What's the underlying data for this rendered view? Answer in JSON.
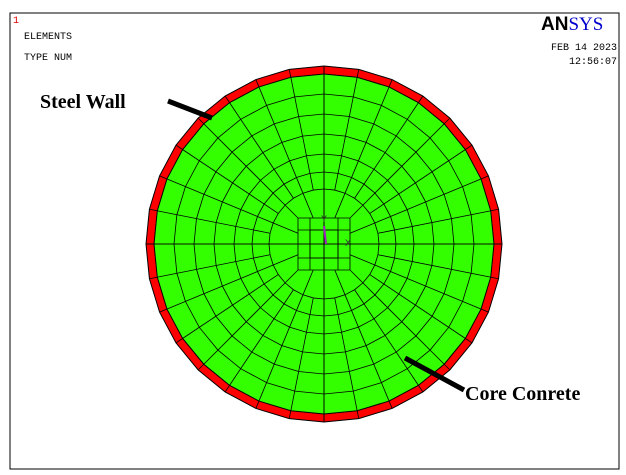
{
  "window_number": "1",
  "header": {
    "line1": "ELEMENTS",
    "line2": "TYPE NUM"
  },
  "logo": {
    "part1": "AN",
    "part2": "SYS"
  },
  "timestamp": {
    "date": "FEB 14 2023",
    "time": "12:56:07"
  },
  "annotations": {
    "outer": "Steel Wall",
    "inner": "Core Conrete"
  },
  "triad": {
    "y": "Y",
    "x": "X"
  }
}
